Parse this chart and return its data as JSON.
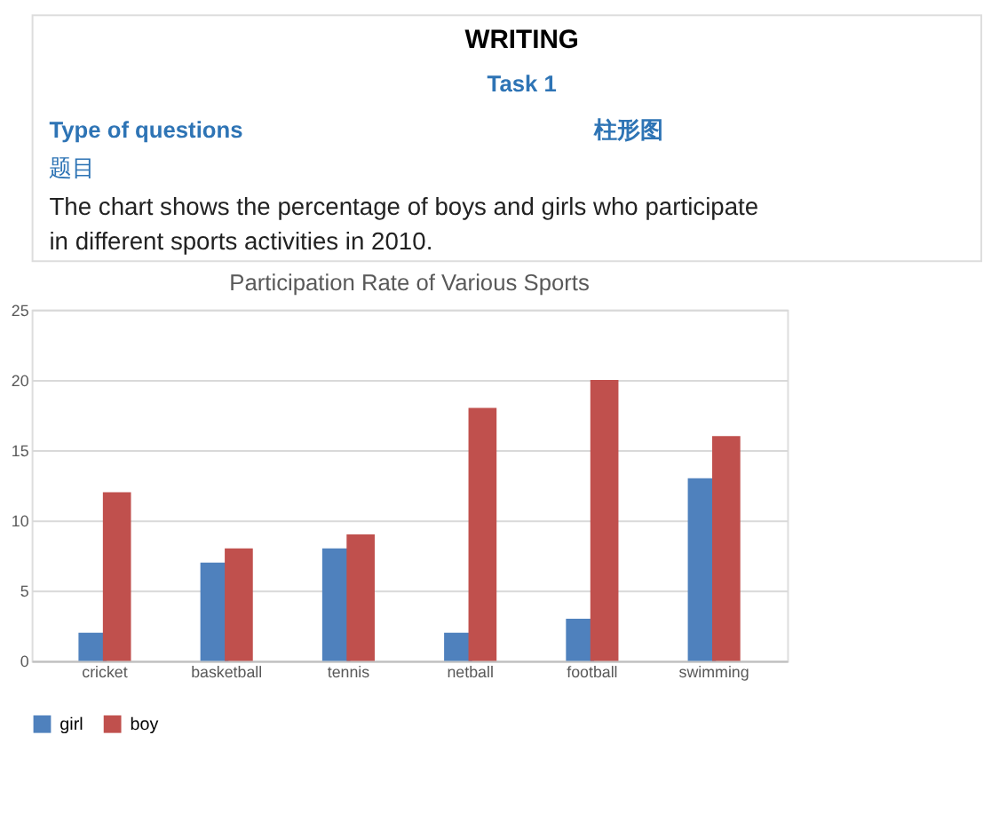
{
  "chart_data": {
    "type": "bar",
    "title": "Participation Rate of Various Sports",
    "annotations": [
      "WRITING",
      "Task 1",
      "Type of questions",
      "柱形图",
      "题目",
      "The chart shows the percentage of boys and girls who participate in different sports activities in 2010."
    ],
    "categories": [
      "cricket",
      "basketball",
      "tennis",
      "netball",
      "football",
      "swimming"
    ],
    "series": [
      {
        "name": "girl",
        "color": "#4f81bd",
        "values": [
          2,
          7,
          8,
          2,
          3,
          13
        ]
      },
      {
        "name": "boy",
        "color": "#c0504d",
        "values": [
          12,
          8,
          9,
          18,
          20,
          16
        ]
      }
    ],
    "ylim": [
      0,
      25
    ],
    "yticks": [
      0,
      5,
      10,
      15,
      20,
      25
    ],
    "grid": "y",
    "legend": "bottom"
  }
}
